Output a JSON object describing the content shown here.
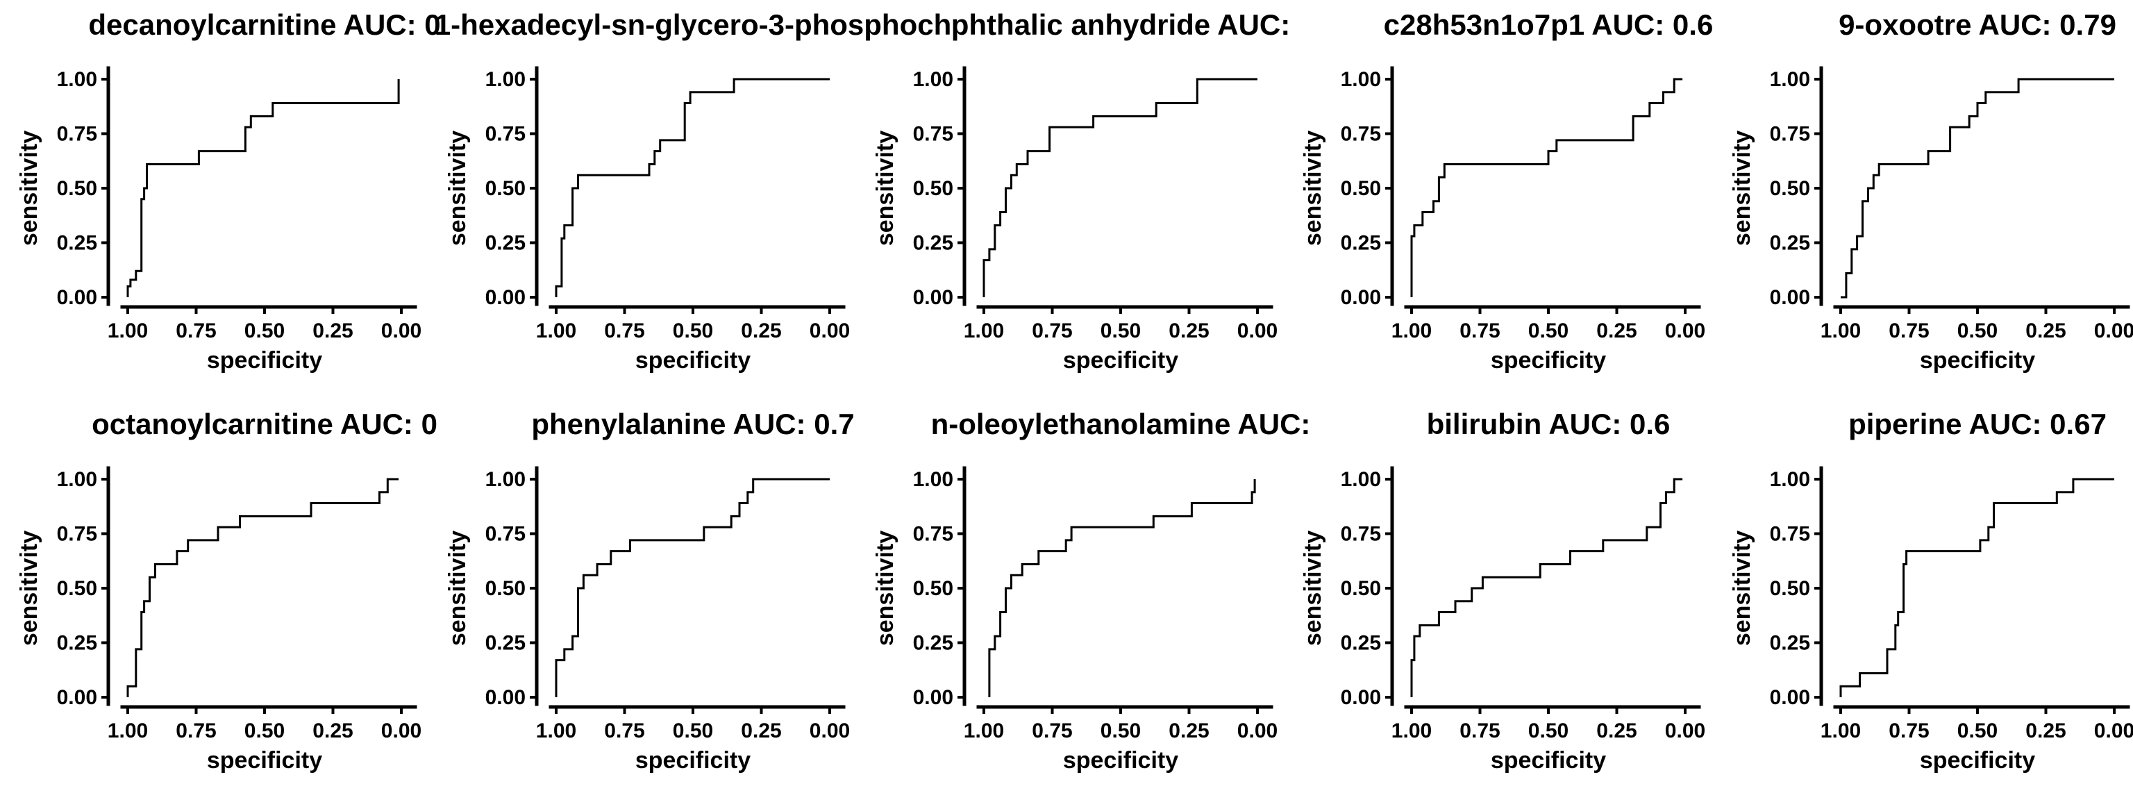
{
  "chart_data": [
    {
      "type": "line",
      "title": "decanoylcarnitine AUC: 0",
      "xlabel": "specificity",
      "ylabel": "sensitivity",
      "xlim": [
        1,
        0
      ],
      "ylim": [
        0,
        1
      ],
      "xticks": [
        "1.00",
        "0.75",
        "0.50",
        "0.25",
        "0.00"
      ],
      "yticks": [
        "0.00",
        "0.25",
        "0.50",
        "0.75",
        "1.00"
      ],
      "x": [
        1.0,
        1.0,
        0.99,
        0.99,
        0.97,
        0.97,
        0.95,
        0.95,
        0.94,
        0.94,
        0.93,
        0.93,
        0.74,
        0.74,
        0.57,
        0.57,
        0.55,
        0.55,
        0.5,
        0.5,
        0.47,
        0.47,
        0.01,
        0.01
      ],
      "y": [
        0.0,
        0.05,
        0.05,
        0.08,
        0.08,
        0.12,
        0.12,
        0.45,
        0.45,
        0.5,
        0.5,
        0.61,
        0.61,
        0.67,
        0.67,
        0.78,
        0.78,
        0.83,
        0.83,
        0.83,
        0.83,
        0.89,
        0.89,
        1.0
      ]
    },
    {
      "type": "line",
      "title": "1-hexadecyl-sn-glycero-3-phosphoch",
      "xlabel": "specificity",
      "ylabel": "sensitivity",
      "xlim": [
        1,
        0
      ],
      "ylim": [
        0,
        1
      ],
      "xticks": [
        "1.00",
        "0.75",
        "0.50",
        "0.25",
        "0.00"
      ],
      "yticks": [
        "0.00",
        "0.25",
        "0.50",
        "0.75",
        "1.00"
      ],
      "x": [
        1.0,
        1.0,
        0.98,
        0.98,
        0.97,
        0.97,
        0.94,
        0.94,
        0.92,
        0.92,
        0.66,
        0.66,
        0.64,
        0.64,
        0.62,
        0.62,
        0.53,
        0.53,
        0.51,
        0.51,
        0.35,
        0.35,
        0.0
      ],
      "y": [
        0.0,
        0.05,
        0.05,
        0.27,
        0.27,
        0.33,
        0.33,
        0.5,
        0.5,
        0.56,
        0.56,
        0.61,
        0.61,
        0.67,
        0.67,
        0.72,
        0.72,
        0.89,
        0.89,
        0.94,
        0.94,
        1.0,
        1.0
      ]
    },
    {
      "type": "line",
      "title": "phthalic anhydride AUC:",
      "xlabel": "specificity",
      "ylabel": "sensitivity",
      "xlim": [
        1,
        0
      ],
      "ylim": [
        0,
        1
      ],
      "xticks": [
        "1.00",
        "0.75",
        "0.50",
        "0.25",
        "0.00"
      ],
      "yticks": [
        "0.00",
        "0.25",
        "0.50",
        "0.75",
        "1.00"
      ],
      "x": [
        1.0,
        1.0,
        0.98,
        0.98,
        0.96,
        0.96,
        0.94,
        0.94,
        0.92,
        0.92,
        0.9,
        0.9,
        0.88,
        0.88,
        0.86,
        0.86,
        0.84,
        0.84,
        0.76,
        0.76,
        0.6,
        0.6,
        0.37,
        0.37,
        0.22,
        0.22,
        0.0
      ],
      "y": [
        0.0,
        0.17,
        0.17,
        0.22,
        0.22,
        0.33,
        0.33,
        0.39,
        0.39,
        0.5,
        0.5,
        0.56,
        0.56,
        0.61,
        0.61,
        0.61,
        0.61,
        0.67,
        0.67,
        0.78,
        0.78,
        0.83,
        0.83,
        0.89,
        0.89,
        1.0,
        1.0
      ]
    },
    {
      "type": "line",
      "title": "c28h53n1o7p1 AUC: 0.6",
      "xlabel": "specificity",
      "ylabel": "sensitivity",
      "xlim": [
        1,
        0
      ],
      "ylim": [
        0,
        1
      ],
      "xticks": [
        "1.00",
        "0.75",
        "0.50",
        "0.25",
        "0.00"
      ],
      "yticks": [
        "0.00",
        "0.25",
        "0.50",
        "0.75",
        "1.00"
      ],
      "x": [
        1.0,
        1.0,
        0.99,
        0.99,
        0.96,
        0.96,
        0.92,
        0.92,
        0.9,
        0.9,
        0.88,
        0.88,
        0.5,
        0.5,
        0.47,
        0.47,
        0.19,
        0.19,
        0.13,
        0.13,
        0.08,
        0.08,
        0.04,
        0.04,
        0.01
      ],
      "y": [
        0.0,
        0.28,
        0.28,
        0.33,
        0.33,
        0.39,
        0.39,
        0.44,
        0.44,
        0.55,
        0.55,
        0.61,
        0.61,
        0.67,
        0.67,
        0.72,
        0.72,
        0.83,
        0.83,
        0.89,
        0.89,
        0.94,
        0.94,
        1.0,
        1.0
      ]
    },
    {
      "type": "line",
      "title": "9-oxootre AUC: 0.79",
      "xlabel": "specificity",
      "ylabel": "sensitivity",
      "xlim": [
        1,
        0
      ],
      "ylim": [
        0,
        1
      ],
      "xticks": [
        "1.00",
        "0.75",
        "0.50",
        "0.25",
        "0.00"
      ],
      "yticks": [
        "0.00",
        "0.25",
        "0.50",
        "0.75",
        "1.00"
      ],
      "x": [
        1.0,
        0.98,
        0.98,
        0.96,
        0.96,
        0.94,
        0.94,
        0.92,
        0.92,
        0.9,
        0.9,
        0.88,
        0.88,
        0.86,
        0.86,
        0.68,
        0.68,
        0.6,
        0.6,
        0.53,
        0.53,
        0.5,
        0.5,
        0.47,
        0.47,
        0.35,
        0.35,
        0.0
      ],
      "y": [
        0.0,
        0.0,
        0.11,
        0.11,
        0.22,
        0.22,
        0.28,
        0.28,
        0.44,
        0.44,
        0.5,
        0.5,
        0.56,
        0.56,
        0.61,
        0.61,
        0.67,
        0.67,
        0.78,
        0.78,
        0.83,
        0.83,
        0.89,
        0.89,
        0.94,
        0.94,
        1.0,
        1.0
      ]
    },
    {
      "type": "line",
      "title": "octanoylcarnitine AUC: 0",
      "xlabel": "specificity",
      "ylabel": "sensitivity",
      "xlim": [
        1,
        0
      ],
      "ylim": [
        0,
        1
      ],
      "xticks": [
        "1.00",
        "0.75",
        "0.50",
        "0.25",
        "0.00"
      ],
      "yticks": [
        "0.00",
        "0.25",
        "0.50",
        "0.75",
        "1.00"
      ],
      "x": [
        1.0,
        1.0,
        0.97,
        0.97,
        0.95,
        0.95,
        0.94,
        0.94,
        0.92,
        0.92,
        0.9,
        0.9,
        0.88,
        0.88,
        0.82,
        0.82,
        0.78,
        0.78,
        0.67,
        0.67,
        0.59,
        0.59,
        0.33,
        0.33,
        0.08,
        0.08,
        0.05,
        0.05,
        0.01
      ],
      "y": [
        0.0,
        0.05,
        0.05,
        0.22,
        0.22,
        0.39,
        0.39,
        0.44,
        0.44,
        0.55,
        0.55,
        0.61,
        0.61,
        0.61,
        0.61,
        0.67,
        0.67,
        0.72,
        0.72,
        0.78,
        0.78,
        0.83,
        0.83,
        0.89,
        0.89,
        0.94,
        0.94,
        1.0,
        1.0
      ]
    },
    {
      "type": "line",
      "title": "phenylalanine AUC: 0.7",
      "xlabel": "specificity",
      "ylabel": "sensitivity",
      "xlim": [
        1,
        0
      ],
      "ylim": [
        0,
        1
      ],
      "xticks": [
        "1.00",
        "0.75",
        "0.50",
        "0.25",
        "0.00"
      ],
      "yticks": [
        "0.00",
        "0.25",
        "0.50",
        "0.75",
        "1.00"
      ],
      "x": [
        1.0,
        1.0,
        0.97,
        0.97,
        0.94,
        0.94,
        0.92,
        0.92,
        0.9,
        0.9,
        0.85,
        0.85,
        0.8,
        0.8,
        0.73,
        0.73,
        0.66,
        0.66,
        0.46,
        0.46,
        0.36,
        0.36,
        0.33,
        0.33,
        0.3,
        0.3,
        0.28,
        0.28,
        0.0
      ],
      "y": [
        0.0,
        0.17,
        0.17,
        0.22,
        0.22,
        0.28,
        0.28,
        0.5,
        0.5,
        0.56,
        0.56,
        0.61,
        0.61,
        0.67,
        0.67,
        0.72,
        0.72,
        0.72,
        0.72,
        0.78,
        0.78,
        0.83,
        0.83,
        0.89,
        0.89,
        0.94,
        0.94,
        1.0,
        1.0
      ]
    },
    {
      "type": "line",
      "title": "n-oleoylethanolamine AUC:",
      "xlabel": "specificity",
      "ylabel": "sensitivity",
      "xlim": [
        1,
        0
      ],
      "ylim": [
        0,
        1
      ],
      "xticks": [
        "1.00",
        "0.75",
        "0.50",
        "0.25",
        "0.00"
      ],
      "yticks": [
        "0.00",
        "0.25",
        "0.50",
        "0.75",
        "1.00"
      ],
      "x": [
        0.98,
        0.98,
        0.96,
        0.96,
        0.94,
        0.94,
        0.92,
        0.92,
        0.9,
        0.9,
        0.86,
        0.86,
        0.8,
        0.8,
        0.7,
        0.7,
        0.68,
        0.68,
        0.66,
        0.66,
        0.38,
        0.38,
        0.24,
        0.24,
        0.02,
        0.02,
        0.01,
        0.01
      ],
      "y": [
        0.0,
        0.22,
        0.22,
        0.28,
        0.28,
        0.39,
        0.39,
        0.5,
        0.5,
        0.56,
        0.56,
        0.61,
        0.61,
        0.67,
        0.67,
        0.72,
        0.72,
        0.78,
        0.78,
        0.78,
        0.78,
        0.83,
        0.83,
        0.89,
        0.89,
        0.94,
        0.94,
        1.0
      ]
    },
    {
      "type": "line",
      "title": "bilirubin AUC: 0.6",
      "xlabel": "specificity",
      "ylabel": "sensitivity",
      "xlim": [
        1,
        0
      ],
      "ylim": [
        0,
        1
      ],
      "xticks": [
        "1.00",
        "0.75",
        "0.50",
        "0.25",
        "0.00"
      ],
      "yticks": [
        "0.00",
        "0.25",
        "0.50",
        "0.75",
        "1.00"
      ],
      "x": [
        1.0,
        1.0,
        0.99,
        0.99,
        0.97,
        0.97,
        0.9,
        0.9,
        0.84,
        0.84,
        0.78,
        0.78,
        0.74,
        0.74,
        0.71,
        0.71,
        0.53,
        0.53,
        0.42,
        0.42,
        0.3,
        0.3,
        0.14,
        0.14,
        0.09,
        0.09,
        0.07,
        0.07,
        0.04,
        0.04,
        0.01
      ],
      "y": [
        0.0,
        0.17,
        0.17,
        0.28,
        0.28,
        0.33,
        0.33,
        0.39,
        0.39,
        0.44,
        0.44,
        0.5,
        0.5,
        0.55,
        0.55,
        0.55,
        0.55,
        0.61,
        0.61,
        0.67,
        0.67,
        0.72,
        0.72,
        0.78,
        0.78,
        0.89,
        0.89,
        0.94,
        0.94,
        1.0,
        1.0
      ]
    },
    {
      "type": "line",
      "title": "piperine AUC: 0.67",
      "xlabel": "specificity",
      "ylabel": "sensitivity",
      "xlim": [
        1,
        0
      ],
      "ylim": [
        0,
        1
      ],
      "xticks": [
        "1.00",
        "0.75",
        "0.50",
        "0.25",
        "0.00"
      ],
      "yticks": [
        "0.00",
        "0.25",
        "0.50",
        "0.75",
        "1.00"
      ],
      "x": [
        1.0,
        1.0,
        0.93,
        0.93,
        0.83,
        0.83,
        0.8,
        0.8,
        0.79,
        0.79,
        0.77,
        0.77,
        0.76,
        0.76,
        0.74,
        0.74,
        0.49,
        0.49,
        0.46,
        0.46,
        0.44,
        0.44,
        0.21,
        0.21,
        0.15,
        0.15,
        0.0
      ],
      "y": [
        0.0,
        0.05,
        0.05,
        0.11,
        0.11,
        0.22,
        0.22,
        0.33,
        0.33,
        0.39,
        0.39,
        0.61,
        0.61,
        0.67,
        0.67,
        0.67,
        0.67,
        0.72,
        0.72,
        0.78,
        0.78,
        0.89,
        0.89,
        0.94,
        0.94,
        1.0,
        1.0
      ]
    }
  ]
}
